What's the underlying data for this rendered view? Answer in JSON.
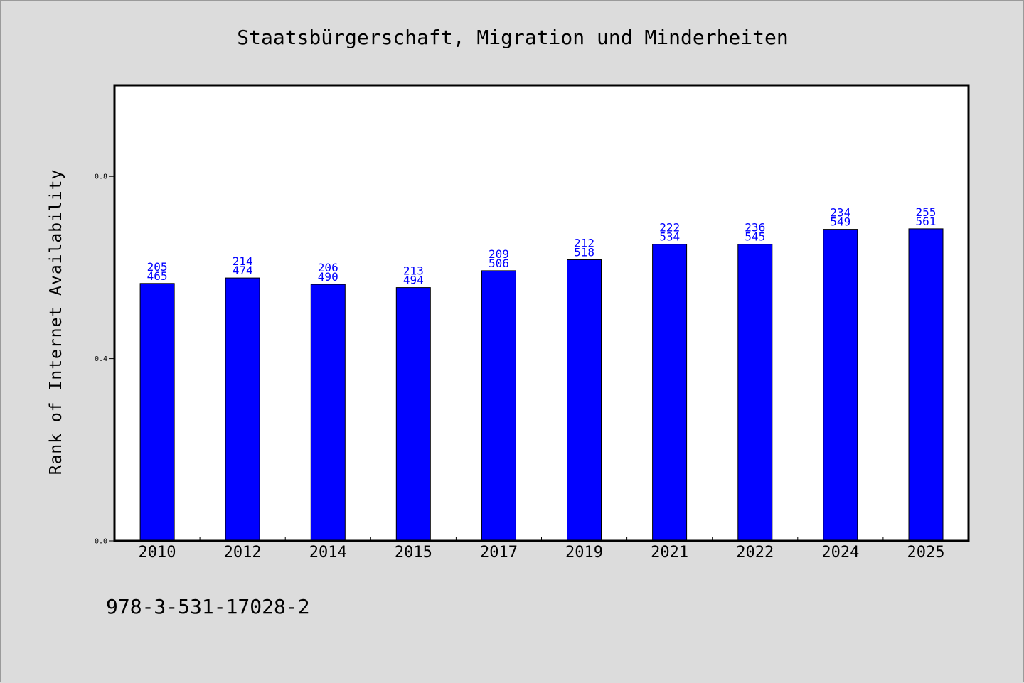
{
  "chart_data": {
    "type": "bar",
    "title": "Staatsbürgerschaft, Migration und Minderheiten",
    "xlabel": "",
    "ylabel": "Rank of Internet Availability",
    "categories": [
      "2010",
      "2012",
      "2014",
      "2015",
      "2017",
      "2019",
      "2021",
      "2022",
      "2024",
      "2025"
    ],
    "values": [
      0.565,
      0.577,
      0.563,
      0.556,
      0.593,
      0.617,
      0.651,
      0.651,
      0.684,
      0.685
    ],
    "labels_top": [
      "205",
      "214",
      "206",
      "213",
      "209",
      "212",
      "222",
      "236",
      "234",
      "255"
    ],
    "labels_bottom": [
      "465",
      "474",
      "490",
      "494",
      "506",
      "518",
      "534",
      "545",
      "549",
      "561"
    ],
    "yticks": [
      "0.0",
      "0.4",
      "0.8"
    ],
    "ylim": [
      0,
      1.0
    ],
    "grid": false,
    "bar_color": "#0000ff",
    "label_color": "#0000ff",
    "plot_background": "#ffffff",
    "page_background": "#dcdcdc"
  },
  "footer": {
    "isbn": "978-3-531-17028-2"
  }
}
